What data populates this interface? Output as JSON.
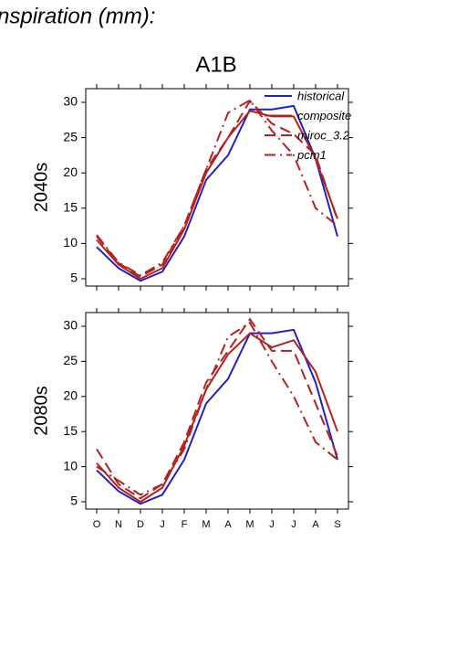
{
  "title": "nspiration (mm):",
  "subtitle": "A1B",
  "chart_data": [
    {
      "type": "line",
      "ylabel": "2040s",
      "legend": "upper right",
      "ylim": [
        3.96,
        31.94
      ],
      "yticks": [
        5,
        10,
        15,
        20,
        25,
        30
      ],
      "series": [
        {
          "name": "historical",
          "color": "#2222bb",
          "dash": "solid",
          "values": [
            9.5,
            6.5,
            4.7,
            6,
            11,
            19,
            22.5,
            29,
            29,
            29.5,
            22,
            11
          ]
        },
        {
          "name": "composite",
          "color": "#b22222",
          "dash": "solid",
          "values": [
            10.5,
            7,
            5,
            6.5,
            12,
            20,
            25,
            28.8,
            28,
            28,
            22,
            13.5
          ]
        },
        {
          "name": "miroc_3.2",
          "color": "#b22222",
          "dash": "dashed",
          "values": [
            11,
            7.2,
            5.3,
            7,
            12.5,
            20.5,
            25,
            30.2,
            27,
            25.5,
            22.5,
            13.3
          ]
        },
        {
          "name": "pcm1",
          "color": "#b22222",
          "dash": "dashdot",
          "values": [
            11.2,
            7.3,
            5.5,
            7.3,
            12.5,
            20.5,
            28.5,
            30.3,
            26,
            22.5,
            15,
            12.5
          ]
        }
      ]
    },
    {
      "type": "line",
      "ylabel": "2080s",
      "categories": [
        "O",
        "N",
        "D",
        "J",
        "F",
        "M",
        "A",
        "M",
        "J",
        "J",
        "A",
        "S"
      ],
      "ylim": [
        3.96,
        31.95
      ],
      "yticks": [
        5,
        10,
        15,
        20,
        25,
        30
      ],
      "series": [
        {
          "color": "#2222bb",
          "dash": "solid",
          "values": [
            9.5,
            6.5,
            4.7,
            6,
            11,
            19,
            22.5,
            29,
            29,
            29.5,
            22,
            11
          ]
        },
        {
          "color": "#b22222",
          "dash": "solid",
          "values": [
            10.5,
            7,
            5,
            7,
            13,
            21,
            26,
            29,
            27,
            28,
            23.5,
            15
          ]
        },
        {
          "color": "#b22222",
          "dash": "dashed",
          "values": [
            12.5,
            7.5,
            5.5,
            7.5,
            13.5,
            22,
            26.5,
            31,
            26.5,
            26.5,
            19,
            11.5
          ]
        },
        {
          "color": "#b22222",
          "dash": "dashdot",
          "values": [
            10,
            8,
            6,
            7.5,
            12.5,
            21,
            28.5,
            30.5,
            25,
            20,
            13.5,
            11
          ]
        }
      ]
    }
  ]
}
